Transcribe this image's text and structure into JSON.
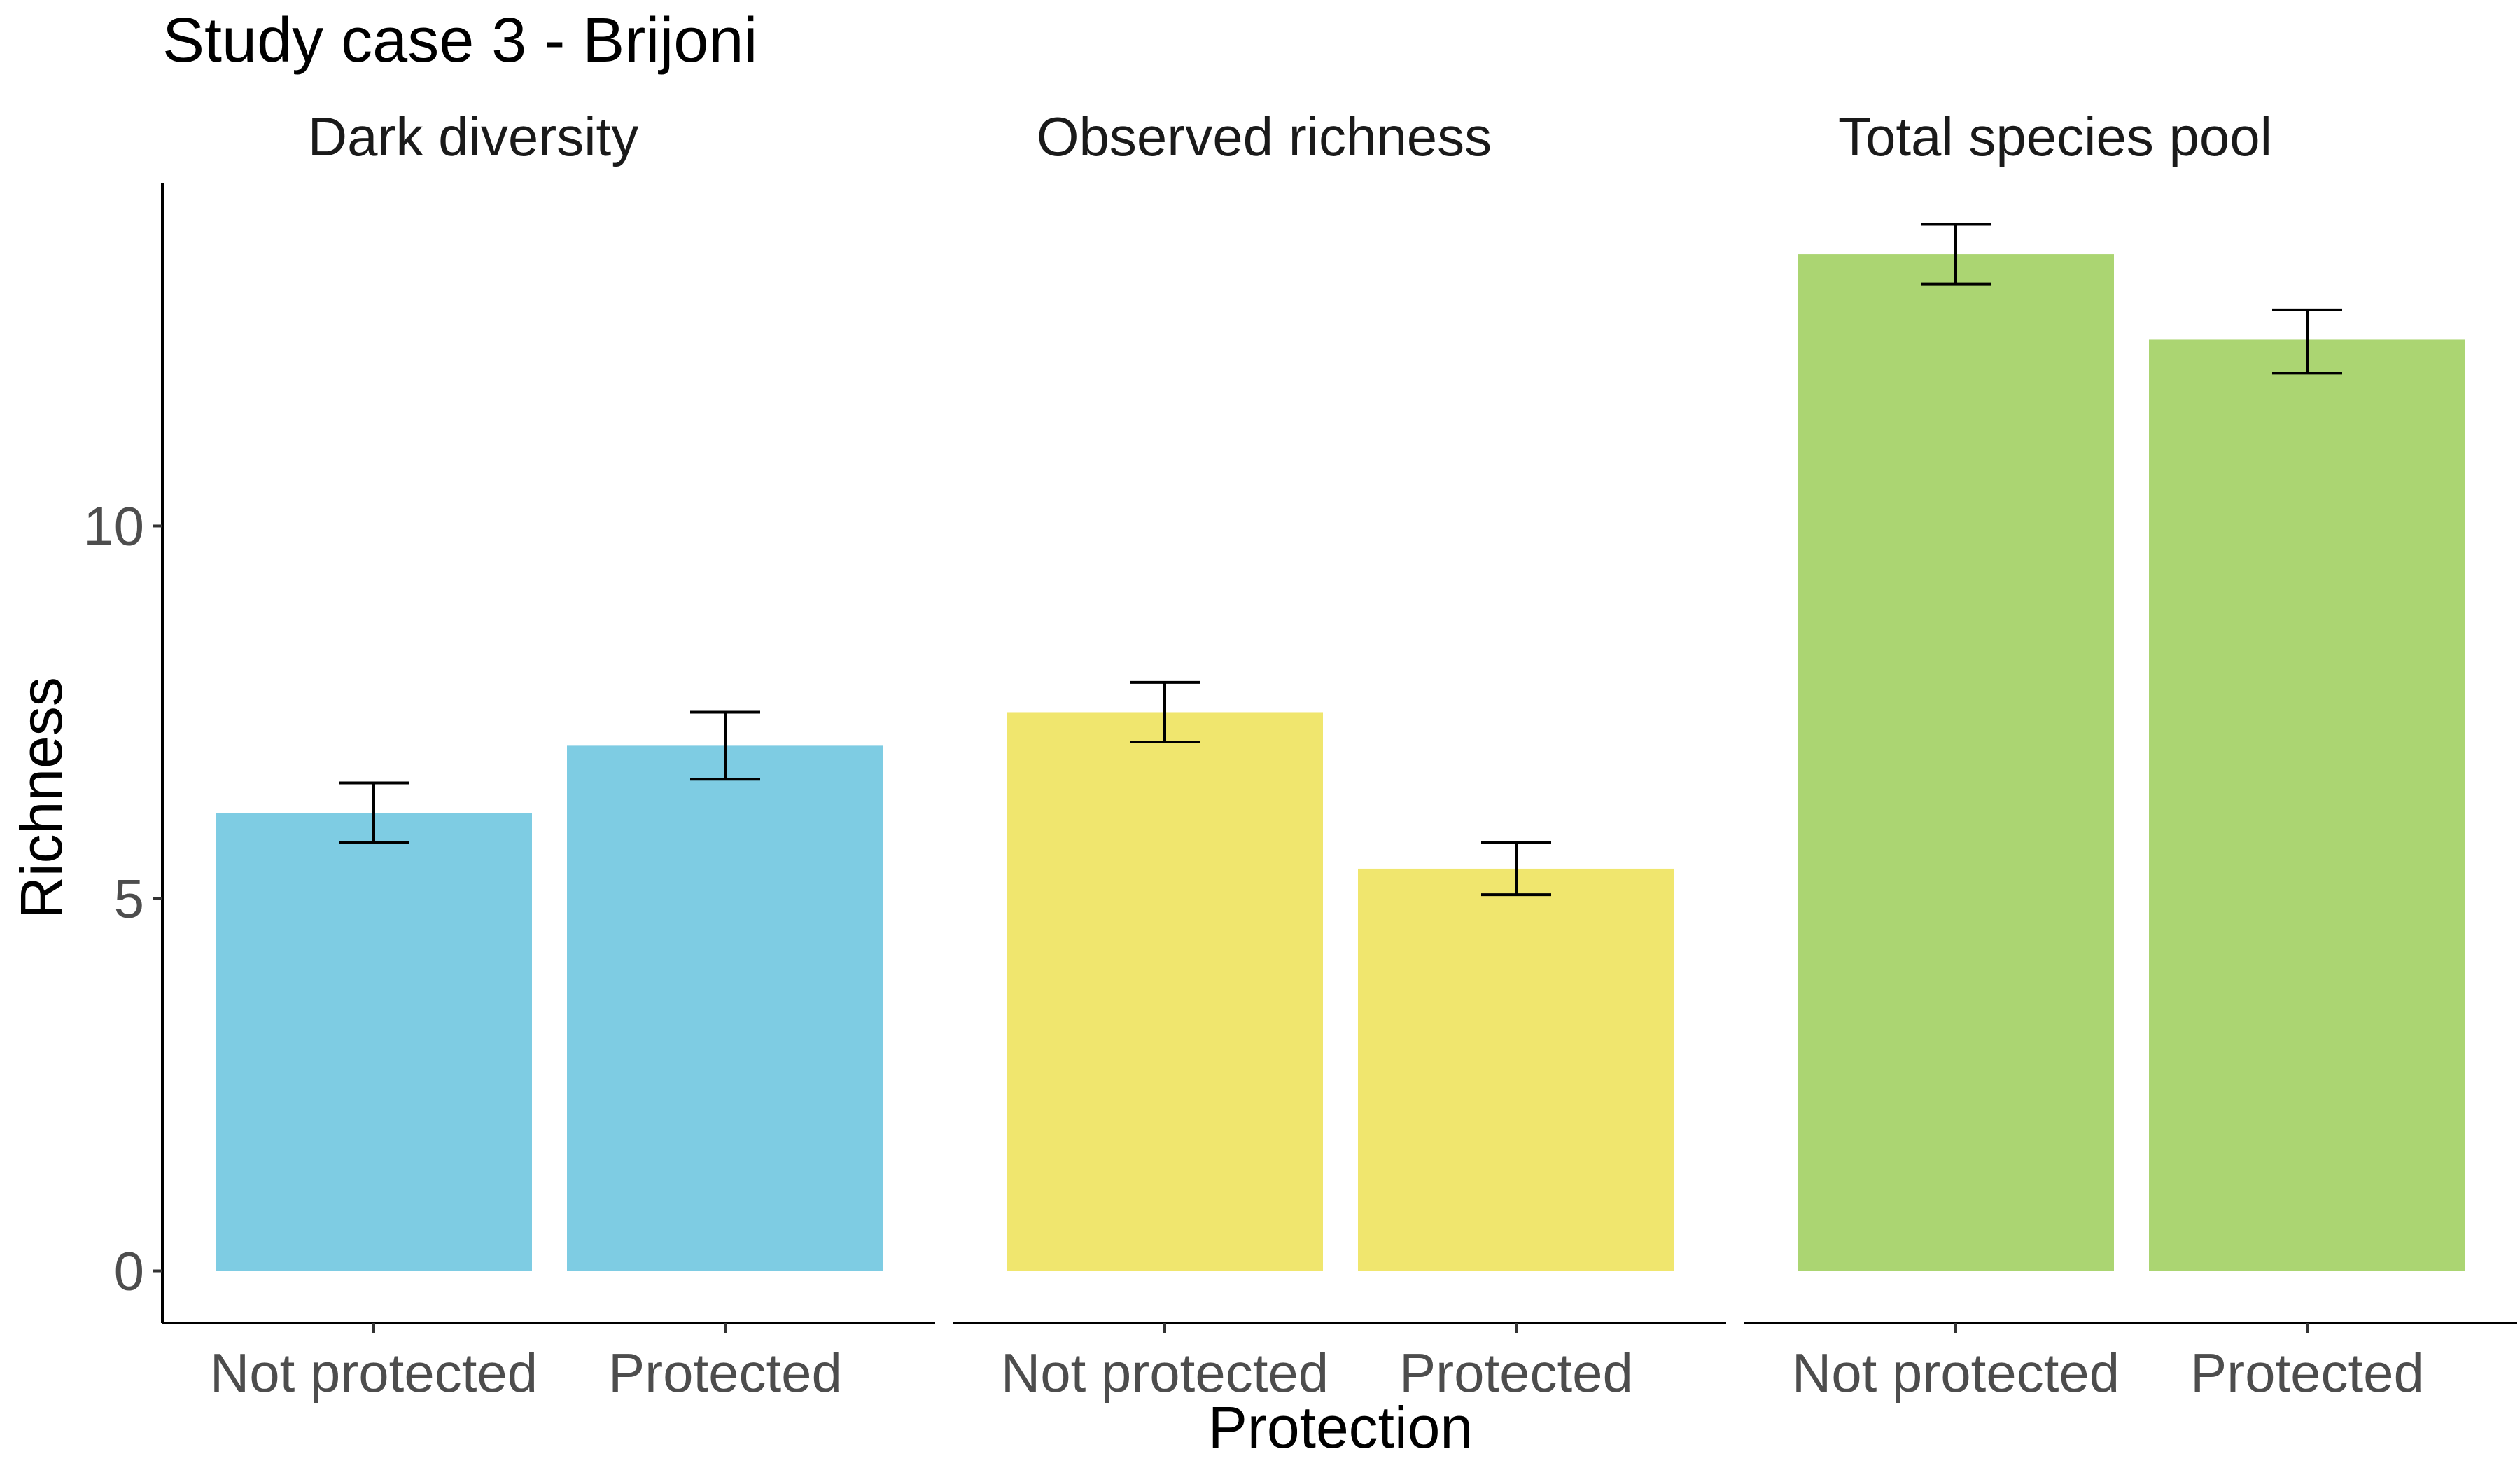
{
  "chart_data": {
    "type": "bar",
    "title": "Study case 3 - Brijoni",
    "xlabel": "Protection",
    "ylabel": "Richness",
    "ylim": [
      -0.7,
      14.6
    ],
    "yticks": [
      0,
      5,
      10
    ],
    "grid": false,
    "legend": "none",
    "categories": [
      "Not protected",
      "Protected"
    ],
    "panels": [
      {
        "name": "Dark diversity",
        "color": "#7ecce3",
        "values": [
          6.15,
          7.05
        ],
        "error_low": [
          5.75,
          6.6
        ],
        "error_high": [
          6.55,
          7.5
        ]
      },
      {
        "name": "Observed richness",
        "color": "#f0e66e",
        "values": [
          7.5,
          5.4
        ],
        "error_low": [
          7.1,
          5.05
        ],
        "error_high": [
          7.9,
          5.75
        ]
      },
      {
        "name": "Total species pool",
        "color": "#abd572",
        "values": [
          13.65,
          12.5
        ],
        "error_low": [
          13.25,
          12.05
        ],
        "error_high": [
          14.05,
          12.9
        ]
      }
    ]
  }
}
